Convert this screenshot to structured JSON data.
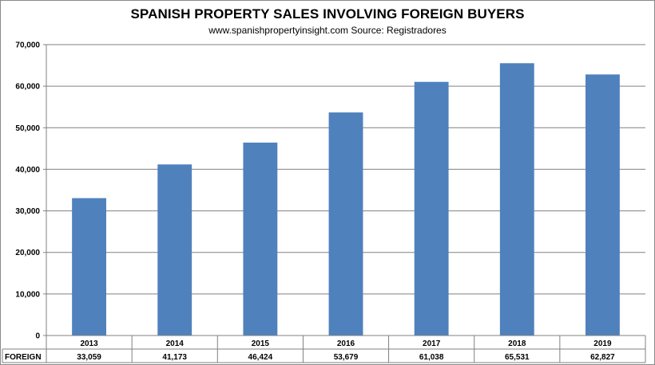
{
  "chart_data": {
    "type": "bar",
    "title": "SPANISH PROPERTY SALES INVOLVING FOREIGN BUYERS",
    "subtitle": "www.spanishpropertyinsight.com Source:  Registradores",
    "categories": [
      "2013",
      "2014",
      "2015",
      "2016",
      "2017",
      "2018",
      "2019"
    ],
    "series": [
      {
        "name": "FOREIGN",
        "values": [
          33059,
          41173,
          46424,
          53679,
          61038,
          65531,
          62827
        ],
        "labels": [
          "33,059",
          "41,173",
          "46,424",
          "53,679",
          "61,038",
          "65,531",
          "62,827"
        ],
        "color": "#4f81bd"
      }
    ],
    "ylim": [
      0,
      70000
    ],
    "yticks": [
      "0",
      "10,000",
      "20,000",
      "30,000",
      "40,000",
      "50,000",
      "60,000",
      "70,000"
    ],
    "grid": true,
    "legend": "data-table"
  }
}
